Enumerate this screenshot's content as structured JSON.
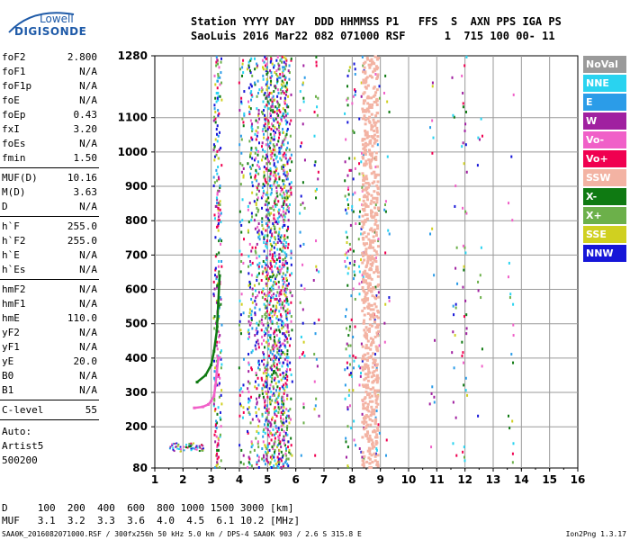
{
  "logo": {
    "line1": "Lowell",
    "line2": "DIGISONDE"
  },
  "header": {
    "labels": [
      "Station",
      "YYYY",
      "DAY",
      "DDD",
      "HHMMSS",
      "P1",
      "FFS",
      "S",
      "AXN",
      "PPS",
      "IGA",
      "PS"
    ],
    "line1": "Station YYYY DAY   DDD HHMMSS P1   FFS  S  AXN PPS IGA PS",
    "line2": "SaoLuis 2016 Mar22 082 071000 RSF      1  715 100 00- 11"
  },
  "params": [
    {
      "key": "foF2",
      "value": "2.800"
    },
    {
      "key": "foF1",
      "value": "N/A"
    },
    {
      "key": "foF1p",
      "value": "N/A"
    },
    {
      "key": "foE",
      "value": "N/A"
    },
    {
      "key": "foEp",
      "value": "0.43"
    },
    {
      "key": "fxI",
      "value": "3.20"
    },
    {
      "key": "foEs",
      "value": "N/A"
    },
    {
      "key": "fmin",
      "value": "1.50"
    },
    {
      "key": "MUF(D)",
      "value": "10.16"
    },
    {
      "key": "M(D)",
      "value": "3.63"
    },
    {
      "key": "D",
      "value": "N/A"
    },
    {
      "key": "h`F",
      "value": "255.0"
    },
    {
      "key": "h`F2",
      "value": "255.0"
    },
    {
      "key": "h`E",
      "value": "N/A"
    },
    {
      "key": "h`Es",
      "value": "N/A"
    },
    {
      "key": "hmF2",
      "value": "N/A"
    },
    {
      "key": "hmF1",
      "value": "N/A"
    },
    {
      "key": "hmE",
      "value": "110.0"
    },
    {
      "key": "yF2",
      "value": "N/A"
    },
    {
      "key": "yF1",
      "value": "N/A"
    },
    {
      "key": "yE",
      "value": "20.0"
    },
    {
      "key": "B0",
      "value": "N/A"
    },
    {
      "key": "B1",
      "value": "N/A"
    },
    {
      "key": "C-level",
      "value": "55"
    }
  ],
  "autoscale": [
    "Auto:",
    "Artist5",
    "500200"
  ],
  "legend": [
    {
      "label": "NoVal",
      "color": "#9a9a9a"
    },
    {
      "label": "NNE",
      "color": "#29d3f0"
    },
    {
      "label": "E",
      "color": "#2b9ce8"
    },
    {
      "label": "W",
      "color": "#a020a0"
    },
    {
      "label": "Vo-",
      "color": "#f060c8"
    },
    {
      "label": "Vo+",
      "color": "#f00050"
    },
    {
      "label": "SSW",
      "color": "#f3b3a3"
    },
    {
      "label": "X-",
      "color": "#0f7a12"
    },
    {
      "label": "X+",
      "color": "#6cb04a"
    },
    {
      "label": "SSE",
      "color": "#d0d020"
    },
    {
      "label": "NNW",
      "color": "#1616d8"
    }
  ],
  "bottom": {
    "line1": "D     100  200  400  600  800 1000 1500 3000 [km]",
    "line2": "MUF   3.1  3.2  3.3  3.6  4.0  4.5  6.1 10.2 [MHz]"
  },
  "footer": {
    "left": "SAA0K_2016082071000.RSF / 300fx256h 50 kHz 5.0 km / DPS-4 SAA0K 903 / 2.6 S 315.8 E",
    "right": "Ion2Png 1.3.17"
  },
  "chart_data": {
    "type": "scatter",
    "title": "",
    "xlabel": "",
    "ylabel": "",
    "xlim": [
      1,
      16
    ],
    "ylim": [
      80,
      1280
    ],
    "x_ticks": [
      1,
      2,
      3,
      4,
      5,
      6,
      7,
      8,
      9,
      10,
      11,
      12,
      13,
      14,
      15,
      16
    ],
    "y_ticks": [
      80,
      200,
      300,
      400,
      500,
      600,
      700,
      800,
      900,
      1000,
      1100,
      1280
    ],
    "grid": true,
    "series": [
      {
        "name": "Vo- trace",
        "color": "#f060c8",
        "points": [
          [
            2.4,
            255
          ],
          [
            2.7,
            258
          ],
          [
            2.9,
            265
          ],
          [
            3.0,
            275
          ],
          [
            3.1,
            290
          ],
          [
            3.15,
            320
          ],
          [
            3.2,
            360
          ],
          [
            3.25,
            400
          ]
        ]
      },
      {
        "name": "X- trace",
        "color": "#0f7a12",
        "points": [
          [
            2.5,
            330
          ],
          [
            2.8,
            350
          ],
          [
            3.0,
            380
          ],
          [
            3.1,
            420
          ],
          [
            3.2,
            480
          ],
          [
            3.25,
            560
          ],
          [
            3.3,
            640
          ]
        ]
      },
      {
        "name": "SSW clutter",
        "color": "#f3b3a3",
        "points": [
          [
            8.6,
            120
          ],
          [
            8.6,
            300
          ],
          [
            8.6,
            500
          ],
          [
            8.6,
            700
          ],
          [
            8.6,
            900
          ],
          [
            8.6,
            1100
          ],
          [
            8.6,
            1270
          ]
        ]
      }
    ]
  }
}
